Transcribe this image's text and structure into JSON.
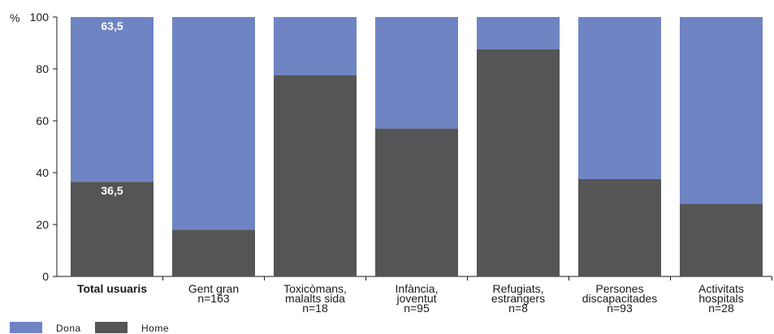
{
  "chart_data": {
    "type": "bar",
    "stacked": true,
    "y_unit": "%",
    "ylim": [
      0,
      100
    ],
    "yticks": [
      0,
      20,
      40,
      60,
      80,
      100
    ],
    "grid": false,
    "legend_position": "bottom-left",
    "categories": [
      [
        "Total usuaris"
      ],
      [
        "Gent gran",
        "n=163"
      ],
      [
        "Toxicòmans,",
        "malalts sida",
        "n=18"
      ],
      [
        "Infància,",
        "joventut",
        "n=95"
      ],
      [
        "Refugiats,",
        "estrangers",
        "n=8"
      ],
      [
        "Persones",
        "discapacitades",
        "n=93"
      ],
      [
        "Activitats",
        "hospitals",
        "n=28"
      ]
    ],
    "series": [
      {
        "name": "Home",
        "color": "#555555",
        "values": [
          36.5,
          18,
          77.5,
          57,
          87.5,
          37.5,
          28
        ]
      },
      {
        "name": "Dona",
        "color": "#6f84c3",
        "values": [
          63.5,
          82,
          22.5,
          43,
          12.5,
          62.5,
          72
        ]
      }
    ],
    "data_labels": [
      {
        "series": "Dona",
        "category_index": 0,
        "text": "63,5"
      },
      {
        "series": "Home",
        "category_index": 0,
        "text": "36,5"
      }
    ],
    "legend": [
      {
        "label": "Dona",
        "color": "#6f84c3"
      },
      {
        "label": "Home",
        "color": "#555555"
      }
    ]
  }
}
